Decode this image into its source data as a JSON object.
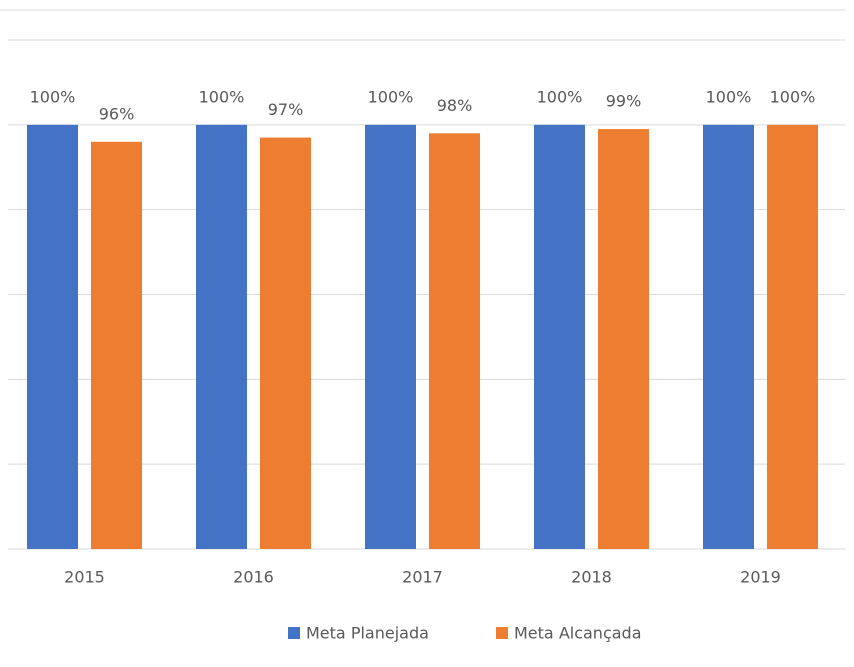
{
  "chart_data": {
    "type": "bar",
    "categories": [
      "2015",
      "2016",
      "2017",
      "2018",
      "2019"
    ],
    "series": [
      {
        "name": "Meta Planejada",
        "color": "#4472c4",
        "values": [
          100,
          100,
          100,
          100,
          100
        ],
        "value_labels": [
          "100%",
          "100%",
          "100%",
          "100%",
          "100%"
        ]
      },
      {
        "name": "Meta Alcançada",
        "color": "#ed7d31",
        "values": [
          96,
          97,
          98,
          99,
          100
        ],
        "value_labels": [
          "96%",
          "97%",
          "98%",
          "99%",
          "100%"
        ]
      }
    ],
    "ylim": [
      0,
      120
    ],
    "yticks": [
      0,
      20,
      40,
      60,
      80,
      100,
      120
    ],
    "grid": true,
    "legend": "bottom"
  }
}
